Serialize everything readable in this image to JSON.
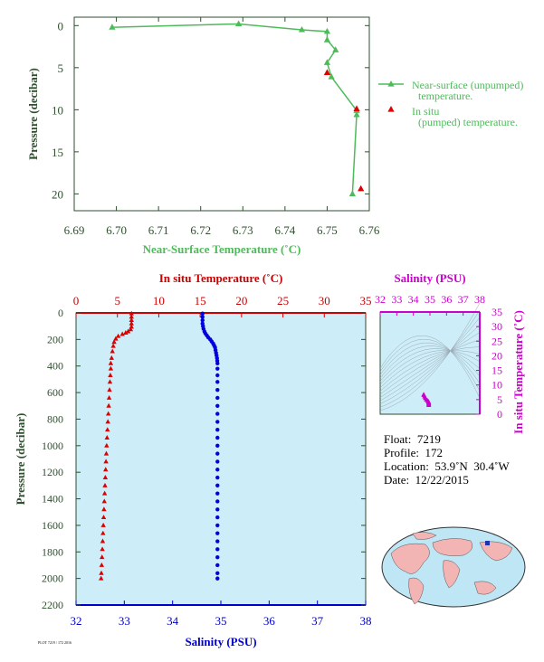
{
  "chart_data": [
    {
      "type": "line",
      "xlabel": "Near-Surface Temperature (˚C)",
      "ylabel": "Pressure (decibar)",
      "xlim": [
        6.69,
        6.76
      ],
      "ylim": [
        22,
        -1
      ],
      "xticks": [
        "6.69",
        "6.70",
        "6.71",
        "6.72",
        "6.73",
        "6.74",
        "6.75",
        "6.76"
      ],
      "yticks": [
        "0",
        "5",
        "10",
        "15",
        "20"
      ],
      "legend_placement": "right",
      "series": [
        {
          "name": "Near-surface (unpumped) temperature.",
          "color": "#4dbb5a",
          "marker": "triangle",
          "x": [
            6.699,
            6.729,
            6.744,
            6.75,
            6.75,
            6.752,
            6.75,
            6.751,
            6.757,
            6.757,
            6.756
          ],
          "y": [
            0.2,
            -0.2,
            0.5,
            0.7,
            1.7,
            2.9,
            4.4,
            6.1,
            10.1,
            10.6,
            20.0
          ]
        },
        {
          "name": "In situ (pumped) temperature.",
          "color": "#dd0000",
          "marker": "triangle",
          "x": [
            6.75,
            6.757,
            6.758
          ],
          "y": [
            5.6,
            9.9,
            19.4
          ]
        }
      ]
    },
    {
      "type": "line",
      "ylabel": "Pressure (decibar)",
      "ylim": [
        0,
        2200
      ],
      "yticks": [
        "0",
        "200",
        "400",
        "600",
        "800",
        "1000",
        "1200",
        "1400",
        "1600",
        "1800",
        "2000",
        "2200"
      ],
      "top_axis": {
        "label": "In situ Temperature (˚C)",
        "range": [
          0,
          35
        ],
        "ticks": [
          "0",
          "5",
          "10",
          "15",
          "20",
          "25",
          "30",
          "35"
        ],
        "color": "#cc0000"
      },
      "bottom_axis": {
        "label": "Salinity (PSU)",
        "range": [
          32,
          38
        ],
        "ticks": [
          "32",
          "33",
          "34",
          "35",
          "36",
          "37",
          "38"
        ],
        "color": "#0000cc"
      },
      "background": "#cdeef8",
      "series": [
        {
          "axis": "temperature",
          "color": "#dd0000",
          "marker": "triangle",
          "pressure": [
            5,
            30,
            55,
            80,
            105,
            125,
            140,
            150,
            160,
            175,
            195,
            220,
            250,
            290,
            340,
            380,
            420,
            470,
            520,
            580,
            640,
            700,
            760,
            820,
            880,
            940,
            1000,
            1060,
            1120,
            1180,
            1240,
            1300,
            1360,
            1420,
            1480,
            1540,
            1600,
            1660,
            1720,
            1780,
            1840,
            1900,
            1960,
            2000
          ],
          "temperature": [
            6.7,
            6.7,
            6.7,
            6.7,
            6.7,
            6.6,
            6.3,
            6.0,
            5.6,
            5.1,
            4.8,
            4.6,
            4.5,
            4.4,
            4.3,
            4.2,
            4.2,
            4.15,
            4.1,
            4.05,
            4.0,
            3.95,
            3.9,
            3.85,
            3.8,
            3.75,
            3.7,
            3.66,
            3.62,
            3.58,
            3.54,
            3.5,
            3.46,
            3.42,
            3.38,
            3.34,
            3.3,
            3.26,
            3.22,
            3.18,
            3.14,
            3.1,
            3.06,
            3.03
          ]
        },
        {
          "axis": "salinity",
          "color": "#0000dd",
          "marker": "circle",
          "pressure": [
            5,
            30,
            55,
            80,
            100,
            120,
            140,
            155,
            170,
            185,
            200,
            215,
            230,
            245,
            260,
            280,
            300,
            320,
            340,
            360,
            380,
            420,
            470,
            520,
            580,
            640,
            700,
            760,
            820,
            880,
            940,
            1000,
            1060,
            1120,
            1180,
            1240,
            1300,
            1360,
            1420,
            1480,
            1540,
            1600,
            1660,
            1720,
            1780,
            1840,
            1900,
            1960,
            2000
          ],
          "salinity": [
            34.62,
            34.62,
            34.62,
            34.62,
            34.63,
            34.64,
            34.66,
            34.68,
            34.71,
            34.74,
            34.78,
            34.81,
            34.84,
            34.86,
            34.88,
            34.89,
            34.9,
            34.91,
            34.92,
            34.925,
            34.93,
            34.93,
            34.93,
            34.93,
            34.93,
            34.93,
            34.93,
            34.93,
            34.93,
            34.93,
            34.93,
            34.93,
            34.93,
            34.93,
            34.93,
            34.93,
            34.93,
            34.93,
            34.93,
            34.93,
            34.93,
            34.93,
            34.93,
            34.93,
            34.93,
            34.93,
            34.93,
            34.93,
            34.93
          ]
        }
      ]
    },
    {
      "type": "scatter",
      "xlabel": "Salinity (PSU)",
      "ylabel": "In situ Temperature (˚C)",
      "xlim": [
        32,
        38
      ],
      "ylim": [
        0,
        35
      ],
      "xticks": [
        "32",
        "33",
        "34",
        "35",
        "36",
        "37",
        "38"
      ],
      "yticks": [
        "0",
        "5",
        "10",
        "15",
        "20",
        "25",
        "30",
        "35"
      ],
      "color": "#cc00cc",
      "background": "#cdeef8",
      "points": [
        {
          "s": 34.62,
          "t": 6.7
        },
        {
          "s": 34.64,
          "t": 6.5
        },
        {
          "s": 34.68,
          "t": 6.0
        },
        {
          "s": 34.72,
          "t": 5.5
        },
        {
          "s": 34.78,
          "t": 5.0
        },
        {
          "s": 34.84,
          "t": 4.7
        },
        {
          "s": 34.89,
          "t": 4.4
        },
        {
          "s": 34.92,
          "t": 4.2
        },
        {
          "s": 34.93,
          "t": 4.0
        },
        {
          "s": 34.93,
          "t": 3.7
        },
        {
          "s": 34.93,
          "t": 3.4
        },
        {
          "s": 34.93,
          "t": 3.1
        }
      ]
    }
  ],
  "float_info": {
    "float": "Float:  7219",
    "profile": "Profile:  172",
    "location": "Location:  53.9˚N  30.4˚W",
    "date": "Date:  12/22/2015"
  },
  "footer_text": "PLOT 7219 / 172 2016"
}
